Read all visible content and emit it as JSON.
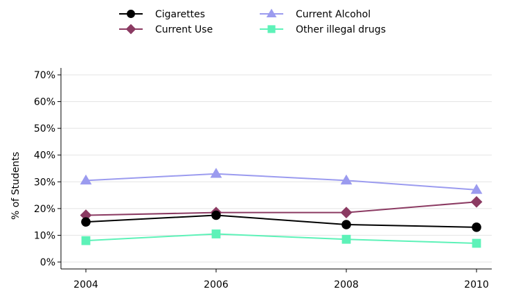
{
  "chart_data": {
    "type": "line",
    "x": [
      2004,
      2006,
      2008,
      2010
    ],
    "xlabel": "",
    "ylabel": "% of Students",
    "ylim": [
      0,
      70
    ],
    "yticks": [
      0,
      10,
      20,
      30,
      40,
      50,
      60,
      70
    ],
    "ytick_labels": [
      "0%",
      "10%",
      "20%",
      "30%",
      "40%",
      "50%",
      "60%",
      "70%"
    ],
    "xtick_labels": [
      "2004",
      "2006",
      "2008",
      "2010"
    ],
    "grid": true,
    "legend_position": "top",
    "series": [
      {
        "name": "Cigarettes",
        "values": [
          15,
          17.5,
          14,
          13
        ],
        "color": "#000000",
        "marker": "circle"
      },
      {
        "name": "Current Alcohol",
        "values": [
          30.5,
          33,
          30.5,
          27
        ],
        "color": "#9b9bef",
        "marker": "triangle"
      },
      {
        "name": "Current Use",
        "values": [
          17.5,
          18.5,
          18.5,
          22.5
        ],
        "color": "#8b3a62",
        "marker": "diamond"
      },
      {
        "name": "Other illegal drugs",
        "values": [
          8,
          10.5,
          8.5,
          7
        ],
        "color": "#5df2b8",
        "marker": "square"
      }
    ]
  }
}
